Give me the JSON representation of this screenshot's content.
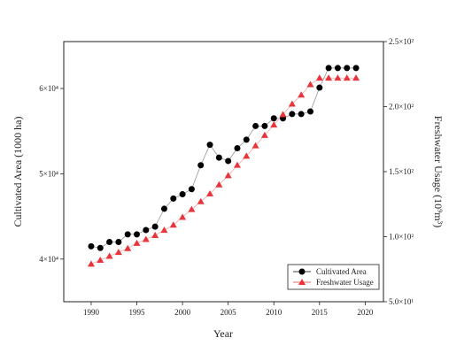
{
  "chart_data": {
    "type": "line",
    "xlabel": "Year",
    "ylabel_left": "Cultivated Area (1000 ha)",
    "ylabel_right": "Freshwater Usage (10⁹m³)",
    "xlim": [
      1987,
      2022
    ],
    "ylim_left": [
      35000,
      65500
    ],
    "ylim_right": [
      50,
      250
    ],
    "x_ticks": [
      1990,
      1995,
      2000,
      2005,
      2010,
      2015,
      2020
    ],
    "y_left_ticks": [
      {
        "value": 40000,
        "label": "4×10⁴"
      },
      {
        "value": 50000,
        "label": "5×10⁴"
      },
      {
        "value": 60000,
        "label": "6×10⁴"
      }
    ],
    "y_right_ticks": [
      {
        "value": 50,
        "label": "5.0×10¹"
      },
      {
        "value": 100,
        "label": "1.0×10²"
      },
      {
        "value": 150,
        "label": "1.5×10²"
      },
      {
        "value": 200,
        "label": "2.0×10²"
      },
      {
        "value": 250,
        "label": "2.5×10²"
      }
    ],
    "legend_position": "bottom-right",
    "series": [
      {
        "name": "Cultivated Area",
        "axis": "left",
        "marker": "circle",
        "color": "#000000",
        "x": [
          1990,
          1991,
          1992,
          1993,
          1994,
          1995,
          1996,
          1997,
          1998,
          1999,
          2000,
          2001,
          2002,
          2003,
          2004,
          2005,
          2006,
          2007,
          2008,
          2009,
          2010,
          2011,
          2012,
          2013,
          2014,
          2015,
          2016,
          2017,
          2018,
          2019
        ],
        "values": [
          41500,
          41300,
          42000,
          42000,
          42900,
          42900,
          43400,
          43800,
          45900,
          47100,
          47600,
          48200,
          51000,
          53400,
          51900,
          51500,
          53000,
          54000,
          55600,
          55600,
          56500,
          56500,
          57000,
          57000,
          57300,
          60100,
          62400,
          62400,
          62400,
          62400
        ]
      },
      {
        "name": "Freshwater Usage",
        "axis": "right",
        "marker": "triangle",
        "color": "#e8343a",
        "x": [
          1990,
          1991,
          1992,
          1993,
          1994,
          1995,
          1996,
          1997,
          1998,
          1999,
          2000,
          2001,
          2002,
          2003,
          2004,
          2005,
          2006,
          2007,
          2008,
          2009,
          2010,
          2011,
          2012,
          2013,
          2014,
          2015,
          2016,
          2017,
          2018,
          2019
        ],
        "values": [
          79,
          82,
          85,
          88,
          91,
          95,
          98,
          101,
          105,
          109,
          115,
          121,
          127,
          133,
          140,
          147,
          155,
          162,
          170,
          178,
          186,
          194,
          202,
          209,
          217,
          222,
          222,
          222,
          222,
          222
        ]
      }
    ]
  }
}
